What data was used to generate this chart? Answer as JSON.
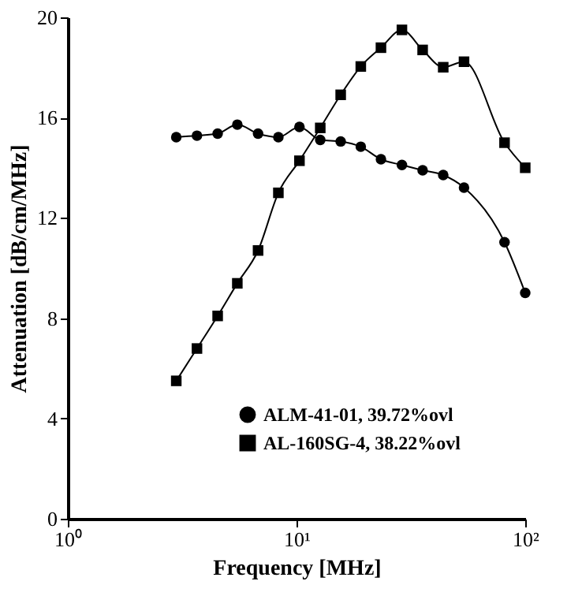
{
  "chart_data": {
    "type": "line",
    "xlabel": "Frequency [MHz]",
    "ylabel": "Attenuation [dB/cm/MHz]",
    "x": [
      2.98,
      3.67,
      4.52,
      5.51,
      6.79,
      8.33,
      10.3,
      12.7,
      15.6,
      19.1,
      23.4,
      28.9,
      35.6,
      43.8,
      54.0,
      81.2,
      100
    ],
    "series": [
      {
        "name": "ALM-41-01, 39.72%ovl",
        "color": "#000000",
        "marker": "circle",
        "values": [
          15.22,
          15.28,
          15.36,
          15.72,
          15.36,
          15.22,
          15.63,
          15.11,
          15.05,
          14.84,
          14.34,
          14.11,
          13.9,
          13.71,
          13.21,
          11.03,
          9.01
        ]
      },
      {
        "name": "AL-160SG-4, 38.22%ovl",
        "color": "#000000",
        "marker": "square",
        "values": [
          5.5,
          6.79,
          8.09,
          9.39,
          10.7,
          13.0,
          14.28,
          15.59,
          16.91,
          18.04,
          18.79,
          19.5,
          18.7,
          18.01,
          18.23,
          15.0,
          14.0
        ]
      }
    ],
    "log": "x",
    "xlim": [
      1,
      100
    ],
    "xticks": [
      {
        "value": 1,
        "label": "10⁰"
      },
      {
        "value": 10,
        "label": "10¹"
      },
      {
        "value": 100,
        "label": "10²"
      }
    ],
    "ylim": [
      0,
      20
    ],
    "yticks": [
      0,
      4,
      8,
      12,
      16,
      20
    ],
    "grid": false,
    "legend": "bottom right",
    "line_style": "solid"
  }
}
